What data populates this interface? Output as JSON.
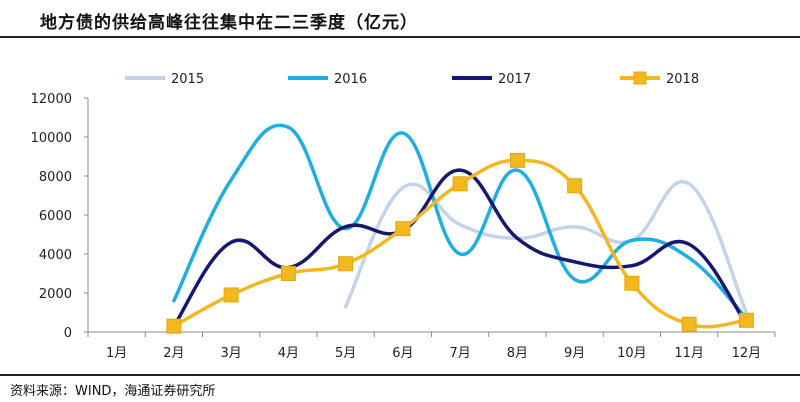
{
  "title": "地方债的供给高峰往往集中在二三季度（亿元）",
  "source": "资料来源：WIND，海通证券研究所",
  "chart_data": {
    "type": "line",
    "title": "地方债的供给高峰往往集中在二三季度（亿元）",
    "xlabel": "",
    "ylabel": "",
    "categories": [
      "1月",
      "2月",
      "3月",
      "4月",
      "5月",
      "6月",
      "7月",
      "8月",
      "9月",
      "10月",
      "11月",
      "12月"
    ],
    "yticks": [
      "0",
      "2000",
      "4000",
      "6000",
      "8000",
      "10000",
      "12000"
    ],
    "ylim": [
      0,
      12000
    ],
    "grid": false,
    "legend_position": "top",
    "smooth": true,
    "series": [
      {
        "name": "2015",
        "color": "#c5d3ea",
        "marker": "none",
        "values": [
          null,
          null,
          null,
          null,
          1300,
          7400,
          5500,
          4800,
          5400,
          4700,
          7600,
          1000
        ]
      },
      {
        "name": "2016",
        "color": "#1eaee0",
        "marker": "none",
        "values": [
          null,
          1600,
          7800,
          10500,
          5300,
          10200,
          4000,
          8300,
          2700,
          4700,
          3800,
          700
        ]
      },
      {
        "name": "2017",
        "color": "#16176f",
        "marker": "none",
        "values": [
          null,
          300,
          4600,
          3300,
          5400,
          5200,
          8300,
          4800,
          3600,
          3400,
          4500,
          400
        ]
      },
      {
        "name": "2018",
        "color": "#f4b81f",
        "marker": "square",
        "values": [
          null,
          300,
          1900,
          3000,
          3500,
          5300,
          7600,
          8800,
          7500,
          2500,
          400,
          600
        ]
      }
    ]
  }
}
